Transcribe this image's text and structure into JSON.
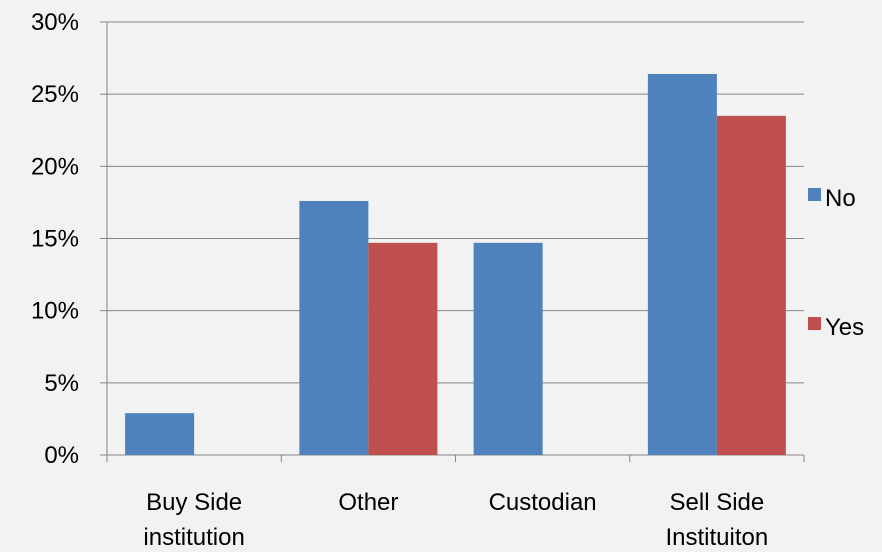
{
  "chart_data": {
    "type": "bar",
    "categories": [
      [
        "Buy Side",
        "institution"
      ],
      [
        "Other"
      ],
      [
        "Custodian"
      ],
      [
        "Sell Side",
        "Instituiton"
      ]
    ],
    "series": [
      {
        "name": "No",
        "color": "#4f81bd",
        "values": [
          2.9,
          17.6,
          14.7,
          26.4
        ]
      },
      {
        "name": "Yes",
        "color": "#c0504d",
        "values": [
          null,
          14.7,
          null,
          23.5
        ]
      }
    ],
    "ylim": [
      0,
      30
    ],
    "yticks": [
      0,
      5,
      10,
      15,
      20,
      25,
      30
    ],
    "ytick_labels": [
      "0%",
      "5%",
      "10%",
      "15%",
      "20%",
      "25%",
      "30%"
    ],
    "grid": true,
    "legend": "right"
  }
}
